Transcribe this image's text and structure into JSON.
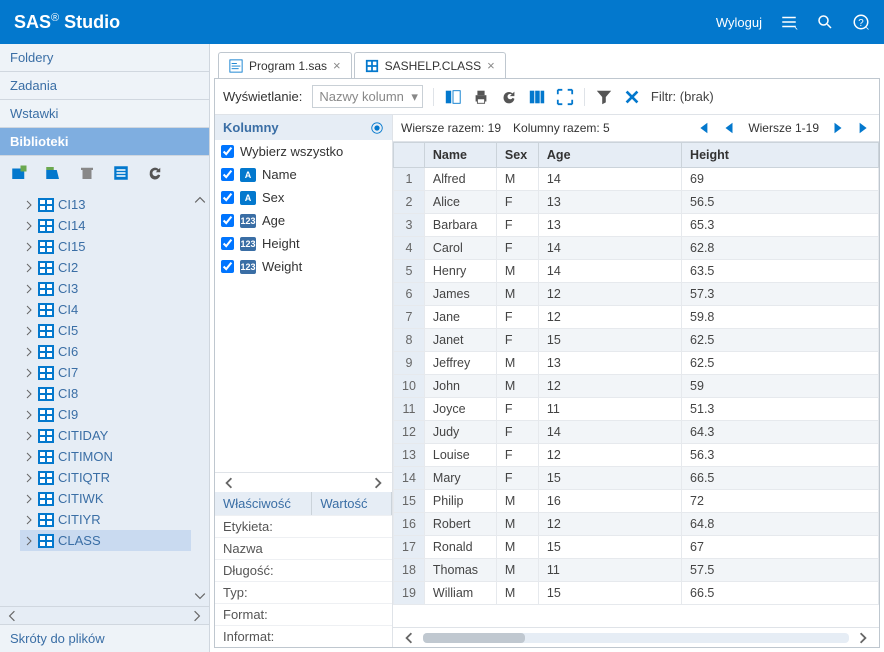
{
  "app": {
    "title": "SAS",
    "title_suffix": "Studio",
    "logout": "Wyloguj"
  },
  "sidebar": {
    "sections": {
      "folders": "Foldery",
      "tasks": "Zadania",
      "snippets": "Wstawki",
      "libraries": "Biblioteki",
      "shortcuts": "Skróty do plików"
    },
    "tree": [
      {
        "label": "CI13"
      },
      {
        "label": "CI14"
      },
      {
        "label": "CI15"
      },
      {
        "label": "CI2"
      },
      {
        "label": "CI3"
      },
      {
        "label": "CI4"
      },
      {
        "label": "CI5"
      },
      {
        "label": "CI6"
      },
      {
        "label": "CI7"
      },
      {
        "label": "CI8"
      },
      {
        "label": "CI9"
      },
      {
        "label": "CITIDAY"
      },
      {
        "label": "CITIMON"
      },
      {
        "label": "CITIQTR"
      },
      {
        "label": "CITIWK"
      },
      {
        "label": "CITIYR"
      },
      {
        "label": "CLASS",
        "selected": true
      }
    ]
  },
  "tabs": [
    {
      "label": "Program 1.sas"
    },
    {
      "label": "SASHELP.CLASS"
    }
  ],
  "viewbar": {
    "label": "Wyświetlanie:",
    "select_placeholder": "Nazwy kolumn",
    "filter_label": "Filtr: (brak)"
  },
  "columns_panel": {
    "title": "Kolumny",
    "select_all": "Wybierz wszystko",
    "cols": [
      {
        "name": "Name",
        "type": "A"
      },
      {
        "name": "Sex",
        "type": "A"
      },
      {
        "name": "Age",
        "type": "N"
      },
      {
        "name": "Height",
        "type": "N"
      },
      {
        "name": "Weight",
        "type": "N"
      }
    ],
    "prop_headers": {
      "prop": "Właściwość",
      "val": "Wartość"
    },
    "props": [
      "Etykieta:",
      "Nazwa",
      "Długość:",
      "Typ:",
      "Format:",
      "Informat:"
    ]
  },
  "grid_info": {
    "rows_total": "Wiersze razem: 19",
    "cols_total": "Kolumny razem: 5",
    "rows_range": "Wiersze 1-19"
  },
  "grid": {
    "headers": [
      "",
      "Name",
      "Sex",
      "Age",
      "Height"
    ],
    "rows": [
      [
        "1",
        "Alfred",
        "M",
        "14",
        "69"
      ],
      [
        "2",
        "Alice",
        "F",
        "13",
        "56.5"
      ],
      [
        "3",
        "Barbara",
        "F",
        "13",
        "65.3"
      ],
      [
        "4",
        "Carol",
        "F",
        "14",
        "62.8"
      ],
      [
        "5",
        "Henry",
        "M",
        "14",
        "63.5"
      ],
      [
        "6",
        "James",
        "M",
        "12",
        "57.3"
      ],
      [
        "7",
        "Jane",
        "F",
        "12",
        "59.8"
      ],
      [
        "8",
        "Janet",
        "F",
        "15",
        "62.5"
      ],
      [
        "9",
        "Jeffrey",
        "M",
        "13",
        "62.5"
      ],
      [
        "10",
        "John",
        "M",
        "12",
        "59"
      ],
      [
        "11",
        "Joyce",
        "F",
        "11",
        "51.3"
      ],
      [
        "12",
        "Judy",
        "F",
        "14",
        "64.3"
      ],
      [
        "13",
        "Louise",
        "F",
        "12",
        "56.3"
      ],
      [
        "14",
        "Mary",
        "F",
        "15",
        "66.5"
      ],
      [
        "15",
        "Philip",
        "M",
        "16",
        "72"
      ],
      [
        "16",
        "Robert",
        "M",
        "12",
        "64.8"
      ],
      [
        "17",
        "Ronald",
        "M",
        "15",
        "67"
      ],
      [
        "18",
        "Thomas",
        "M",
        "11",
        "57.5"
      ],
      [
        "19",
        "William",
        "M",
        "15",
        "66.5"
      ]
    ]
  },
  "colors": {
    "brand": "#0378cd",
    "sidebar_bg": "#e6edf5",
    "panel_header_bg": "#e6edf5",
    "row_alt": "#f2f5f8",
    "border": "#cbd3da",
    "link": "#3a6ea5"
  }
}
